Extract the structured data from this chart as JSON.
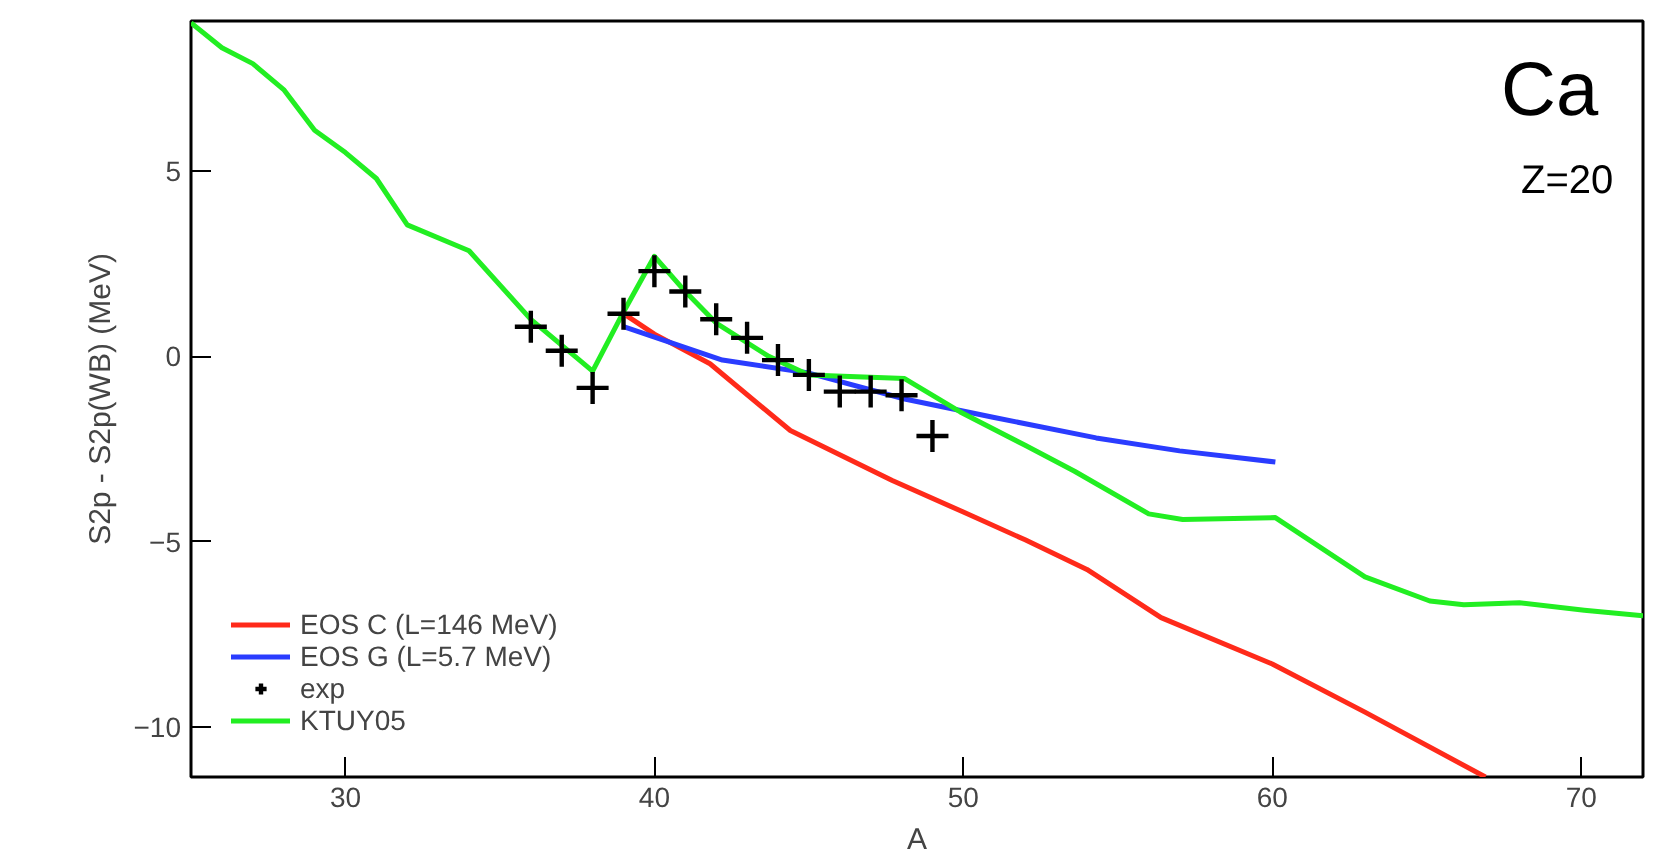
{
  "chart_data": {
    "type": "line",
    "xlabel": "A",
    "ylabel": "S2p - S2p(WB) (MeV)",
    "annotations": [
      "Ca",
      "Z=20"
    ],
    "xlim": [
      25,
      72
    ],
    "ylim": [
      -11.35,
      9.05
    ],
    "xticks": [
      30,
      40,
      50,
      60,
      70
    ],
    "yticks": [
      -10,
      -5,
      0,
      5
    ],
    "grid": false,
    "legend": "bottom left",
    "series": [
      {
        "name": "EOS C (L=146 MeV)",
        "color": "#ff2a1a",
        "x": [
          39.1,
          40,
          41.8,
          44.4,
          47.7,
          50,
          52,
          54,
          56.4,
          60,
          63,
          66.9
        ],
        "values": [
          1.1,
          0.6,
          -0.2,
          -2.0,
          -3.35,
          -4.2,
          -4.95,
          -5.75,
          -7.05,
          -8.3,
          -9.6,
          -11.35
        ]
      },
      {
        "name": "EOS G (L=5.7 MeV)",
        "color": "#2a3cff",
        "x": [
          39,
          42.2,
          45,
          48.1,
          51,
          54.3,
          57,
          60.1
        ],
        "values": [
          0.8,
          -0.1,
          -0.45,
          -1.15,
          -1.65,
          -2.2,
          -2.55,
          -2.85
        ]
      },
      {
        "name": "exp",
        "type": "scatter",
        "marker": "cross",
        "color": "#000000",
        "x": [
          36,
          37,
          38,
          39,
          40,
          41,
          42,
          43,
          44,
          45,
          46,
          47,
          48,
          49
        ],
        "values": [
          0.8,
          0.15,
          -0.85,
          1.15,
          2.3,
          1.75,
          1.0,
          0.5,
          -0.1,
          -0.5,
          -0.95,
          -0.95,
          -1.05,
          -2.15
        ]
      },
      {
        "name": "KTUY05",
        "color": "#22ee22",
        "x": [
          25,
          26,
          27,
          28,
          29,
          30,
          31,
          32,
          34,
          36,
          38,
          39,
          40,
          41,
          42,
          43.7,
          45,
          48.1,
          49.9,
          52,
          53.6,
          56,
          57.1,
          60.1,
          63,
          65.1,
          66.2,
          68,
          70.1,
          72
        ],
        "values": [
          9.0,
          8.33,
          7.9,
          7.2,
          6.1,
          5.5,
          4.8,
          3.55,
          2.85,
          1.0,
          -0.4,
          1.2,
          2.7,
          1.75,
          0.9,
          0.0,
          -0.5,
          -0.6,
          -1.5,
          -2.4,
          -3.1,
          -4.25,
          -4.4,
          -4.35,
          -5.95,
          -6.6,
          -6.7,
          -6.65,
          -6.85,
          -7.0
        ]
      }
    ]
  }
}
